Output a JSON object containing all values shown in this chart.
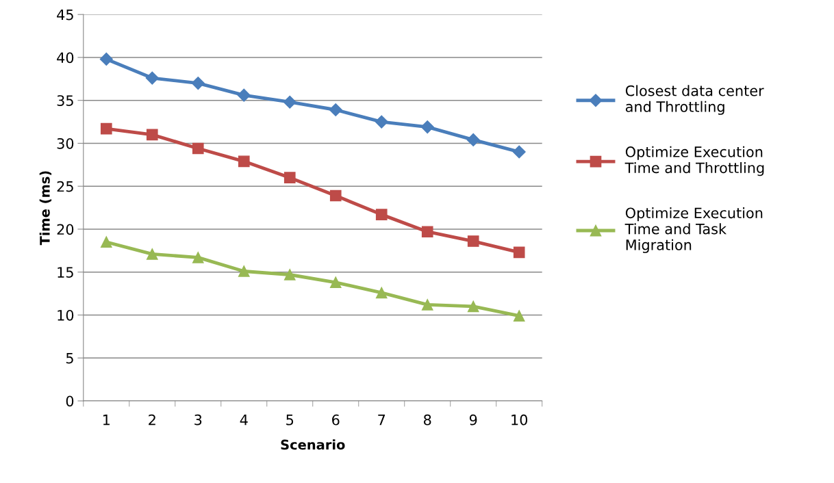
{
  "chart_data": {
    "type": "line",
    "xlabel": "Scenario",
    "ylabel": "Time (ms)",
    "categories": [
      "1",
      "2",
      "3",
      "4",
      "5",
      "6",
      "7",
      "8",
      "9",
      "10"
    ],
    "series": [
      {
        "name": "Closest data center and Throttling",
        "color": "#4a7ebb",
        "marker": "diamond",
        "values": [
          39.8,
          37.6,
          37.0,
          35.6,
          34.8,
          33.9,
          32.5,
          31.9,
          30.4,
          29.0
        ]
      },
      {
        "name": "Optimize Execution Time and Throttling",
        "color": "#be4b48",
        "marker": "square",
        "values": [
          31.7,
          31.0,
          29.4,
          27.9,
          26.0,
          23.9,
          21.7,
          19.7,
          18.6,
          17.3
        ]
      },
      {
        "name": "Optimize Execution Time and Task Migration",
        "color": "#98b954",
        "marker": "triangle",
        "values": [
          18.5,
          17.1,
          16.7,
          15.1,
          14.7,
          13.8,
          12.6,
          11.2,
          11.0,
          9.9
        ]
      }
    ],
    "ylim": [
      0,
      45
    ],
    "yticks": [
      0,
      5,
      10,
      15,
      20,
      25,
      30,
      35,
      40,
      45
    ],
    "grid": "y",
    "legend": "right",
    "line_style": "solid"
  }
}
